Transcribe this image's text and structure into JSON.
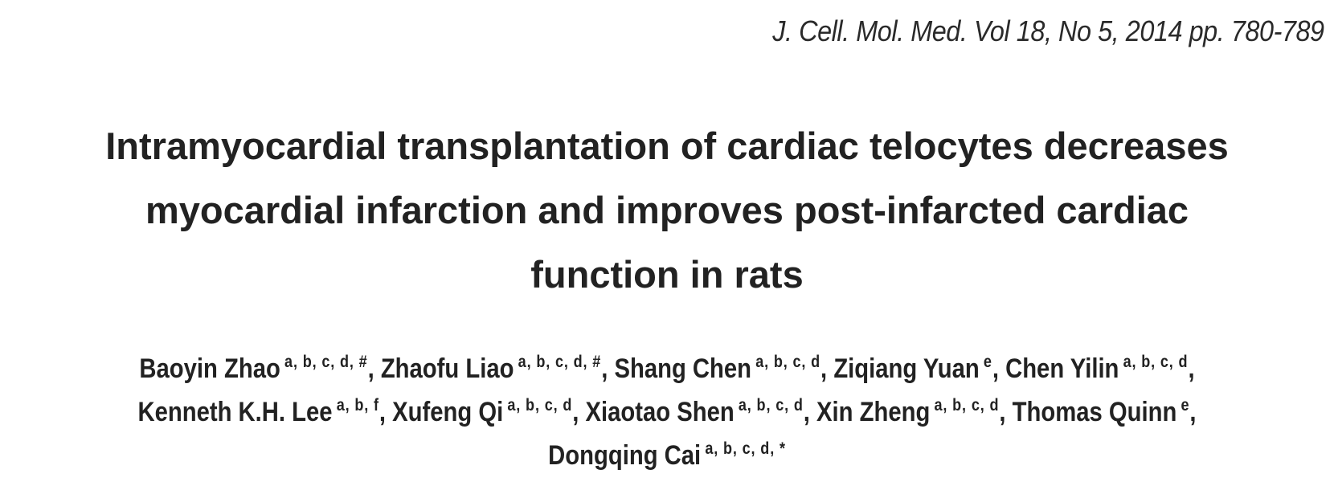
{
  "journal_reference": "J. Cell. Mol. Med. Vol 18, No 5, 2014 pp. 780-789",
  "title_lines": [
    "Intramyocardial transplantation of cardiac telocytes decreases",
    "myocardial infarction and improves post-infarcted cardiac",
    "function in rats"
  ],
  "authors": [
    {
      "name": "Baoyin Zhao",
      "affiliations": "a, b, c, d, #"
    },
    {
      "name": "Zhaofu Liao",
      "affiliations": "a, b, c, d, #"
    },
    {
      "name": "Shang Chen",
      "affiliations": "a, b, c, d"
    },
    {
      "name": "Ziqiang Yuan",
      "affiliations": "e"
    },
    {
      "name": "Chen Yilin",
      "affiliations": "a, b, c, d"
    },
    {
      "name": "Kenneth K.H. Lee",
      "affiliations": "a, b, f"
    },
    {
      "name": "Xufeng Qi",
      "affiliations": "a, b, c, d"
    },
    {
      "name": "Xiaotao Shen",
      "affiliations": "a, b, c, d"
    },
    {
      "name": "Xin Zheng",
      "affiliations": "a, b, c, d"
    },
    {
      "name": "Thomas Quinn",
      "affiliations": "e"
    },
    {
      "name": "Dongqing Cai",
      "affiliations": "a, b, c, d, *"
    }
  ]
}
